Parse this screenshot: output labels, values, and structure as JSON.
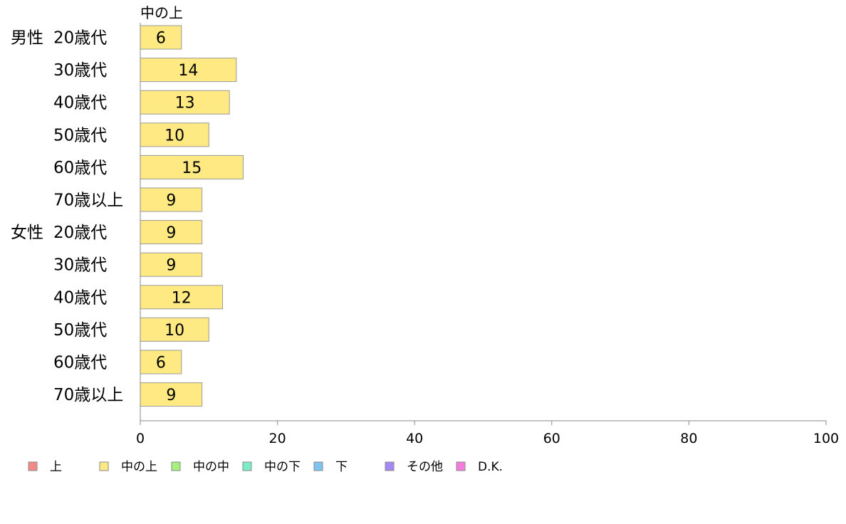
{
  "chart_data": {
    "type": "bar",
    "orientation": "horizontal",
    "series_header": "中の上",
    "groups": [
      {
        "label": "男性",
        "categories": [
          "20歳代",
          "30歳代",
          "40歳代",
          "50歳代",
          "60歳代",
          "70歳以上"
        ],
        "values": [
          6,
          14,
          13,
          10,
          15,
          9
        ]
      },
      {
        "label": "女性",
        "categories": [
          "20歳代",
          "30歳代",
          "40歳代",
          "50歳代",
          "60歳代",
          "70歳以上"
        ],
        "values": [
          9,
          9,
          12,
          10,
          6,
          9
        ]
      }
    ],
    "xlim": [
      0,
      100
    ],
    "xticks": [
      "0",
      "20",
      "40",
      "60",
      "80",
      "100"
    ],
    "grid": false,
    "bar_color": "#FFE982",
    "legend_position": "bottom-left",
    "legend": [
      {
        "label": "上",
        "color": "#F28A87"
      },
      {
        "label": "中の上",
        "color": "#FFE982"
      },
      {
        "label": "中の中",
        "color": "#A6F07E"
      },
      {
        "label": "中の下",
        "color": "#79EEC5"
      },
      {
        "label": "下",
        "color": "#7EC3F2"
      },
      {
        "label": "その他",
        "color": "#A487F2"
      },
      {
        "label": "D.K.",
        "color": "#F47CDC"
      }
    ]
  }
}
